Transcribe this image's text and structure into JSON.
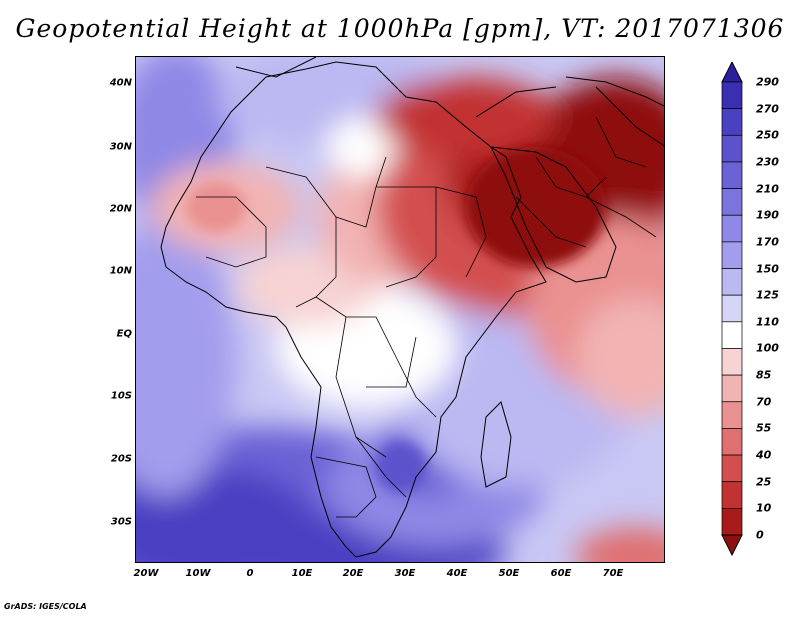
{
  "title": "Geopotential Height at 1000hPa [gpm], VT: 2017071306",
  "credit": "GrADS: IGES/COLA",
  "map": {
    "region": "Africa and Middle East",
    "lon_range": [
      -20,
      80
    ],
    "lat_range": [
      -37,
      45
    ],
    "y_axis_labels": [
      "40N",
      "30N",
      "20N",
      "10N",
      "EQ",
      "10S",
      "20S",
      "30S"
    ],
    "x_axis_labels": [
      "20W",
      "10W",
      "0",
      "10E",
      "20E",
      "30E",
      "40E",
      "50E",
      "60E",
      "70E"
    ]
  },
  "colorbar": {
    "labels": [
      "290",
      "270",
      "250",
      "230",
      "210",
      "190",
      "170",
      "150",
      "125",
      "110",
      "100",
      "85",
      "70",
      "55",
      "40",
      "25",
      "10",
      "0"
    ],
    "colors": [
      "#2c1f9e",
      "#3a2fb3",
      "#4a40c2",
      "#5b52cc",
      "#6b62d6",
      "#7c74de",
      "#8f88e6",
      "#a39ded",
      "#bbb8f2",
      "#d6d5f7",
      "#ffffff",
      "#f7d3d3",
      "#f2b3b3",
      "#ea9191",
      "#e07070",
      "#d34f4f",
      "#c23232",
      "#a91b1b",
      "#8e0f0f"
    ]
  }
}
